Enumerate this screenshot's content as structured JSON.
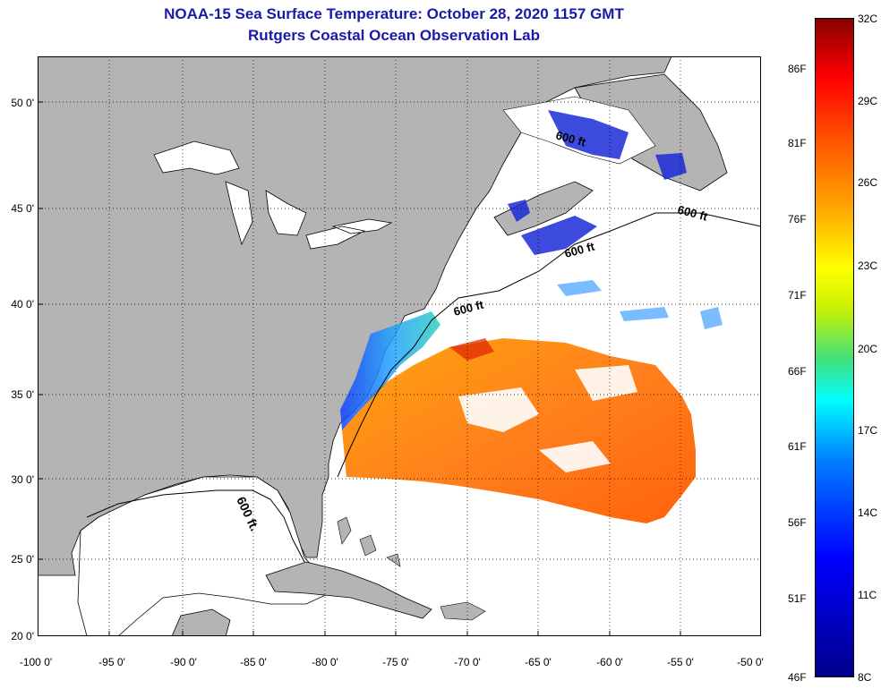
{
  "header": {
    "title": "NOAA-15 Sea Surface Temperature:  October 28, 2020 1157 GMT",
    "subtitle": "Rutgers Coastal Ocean Observation Lab"
  },
  "map": {
    "latitude_labels": [
      "50 0'",
      "45 0'",
      "40 0'",
      "35 0'",
      "30 0'",
      "25 0'",
      "20 0'"
    ],
    "longitude_labels": [
      "-100 0'",
      "-95 0'",
      "-90 0'",
      "-85 0'",
      "-80 0'",
      "-75 0'",
      "-70 0'",
      "-65 0'",
      "-60 0'",
      "-55 0'",
      "-50 0'"
    ],
    "isobath_label": "600 ft.",
    "isobath_labels_shelf": [
      "600 ft",
      "600 ft",
      "600 ft",
      "600 ft"
    ],
    "colors": {
      "land": "#b4b4b4",
      "cloud": "#ffffff",
      "grid": "#000000"
    }
  },
  "colorbar": {
    "celsius_labels": [
      "32C",
      "29C",
      "26C",
      "23C",
      "20C",
      "17C",
      "14C",
      "11C",
      "8C"
    ],
    "fahrenheit_labels": [
      "86F",
      "81F",
      "76F",
      "71F",
      "66F",
      "61F",
      "56F",
      "51F",
      "46F"
    ]
  }
}
